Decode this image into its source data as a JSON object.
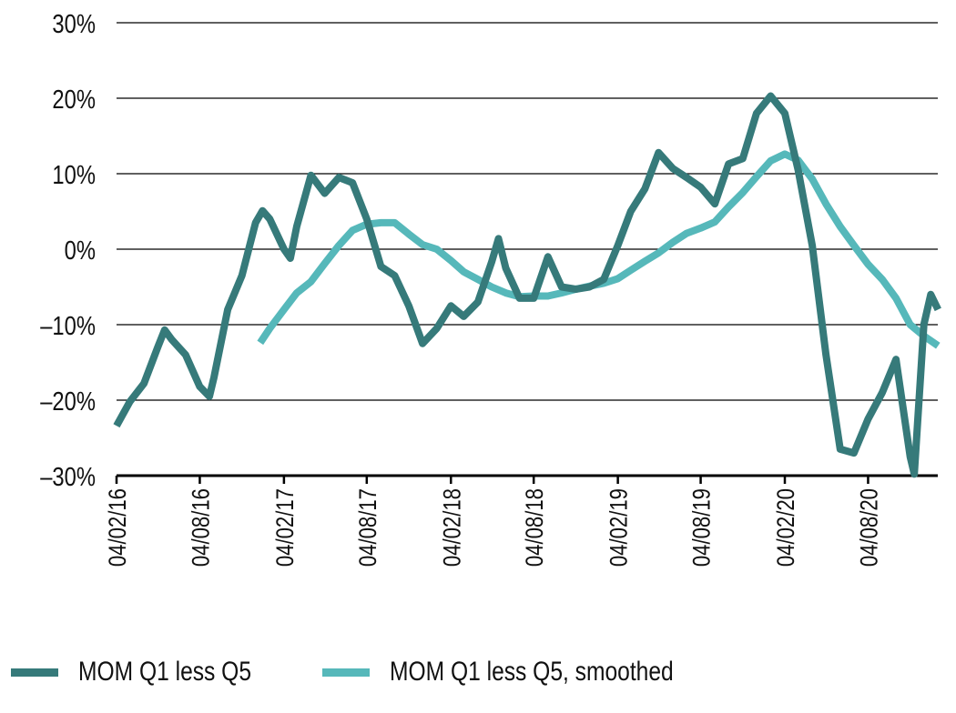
{
  "chart_data": {
    "type": "line",
    "title": "",
    "xlabel": "",
    "ylabel": "",
    "ylim": [
      -30,
      30
    ],
    "yticks": [
      30,
      20,
      10,
      0,
      -10,
      -20,
      -30
    ],
    "ytick_labels": [
      "30%",
      "20%",
      "10%",
      "0%",
      "–10%",
      "–20%",
      "–30%"
    ],
    "xtick_dates": [
      "2016-02-04",
      "2016-08-04",
      "2017-02-04",
      "2017-08-04",
      "2018-02-04",
      "2018-08-04",
      "2019-02-04",
      "2019-08-04",
      "2020-02-04",
      "2020-08-04"
    ],
    "xtick_labels": [
      "04/02/16",
      "04/08/16",
      "04/02/17",
      "04/08/17",
      "04/02/18",
      "04/08/18",
      "04/02/19",
      "04/08/19",
      "04/02/20",
      "04/08/20"
    ],
    "xlim": [
      "2016-02-04",
      "2021-01-20"
    ],
    "grid": "horizontal",
    "legend_position": "bottom",
    "series": [
      {
        "name": "MOM Q1 less Q5",
        "color": "#367A7A",
        "points": [
          [
            "2016-02-04",
            -23.4
          ],
          [
            "2016-03-04",
            -20.2
          ],
          [
            "2016-04-04",
            -17.8
          ],
          [
            "2016-05-04",
            -13
          ],
          [
            "2016-05-19",
            -10.7
          ],
          [
            "2016-06-04",
            -12
          ],
          [
            "2016-07-04",
            -14
          ],
          [
            "2016-08-04",
            -18.2
          ],
          [
            "2016-08-25",
            -19.5
          ],
          [
            "2016-09-04",
            -17
          ],
          [
            "2016-10-04",
            -8
          ],
          [
            "2016-11-04",
            -3.5
          ],
          [
            "2016-12-04",
            3.5
          ],
          [
            "2016-12-19",
            5.1
          ],
          [
            "2017-01-04",
            4
          ],
          [
            "2017-02-04",
            0
          ],
          [
            "2017-02-18",
            -1.2
          ],
          [
            "2017-03-04",
            3
          ],
          [
            "2017-04-04",
            9.8
          ],
          [
            "2017-05-04",
            7.4
          ],
          [
            "2017-06-04",
            9.5
          ],
          [
            "2017-07-04",
            8.8
          ],
          [
            "2017-08-04",
            4
          ],
          [
            "2017-09-04",
            -2.3
          ],
          [
            "2017-10-04",
            -3.5
          ],
          [
            "2017-11-04",
            -7.5
          ],
          [
            "2017-12-04",
            -12.5
          ],
          [
            "2018-01-04",
            -10.5
          ],
          [
            "2018-02-04",
            -7.5
          ],
          [
            "2018-03-04",
            -8.9
          ],
          [
            "2018-04-04",
            -7
          ],
          [
            "2018-05-04",
            -1.7
          ],
          [
            "2018-05-19",
            1.4
          ],
          [
            "2018-06-04",
            -2.5
          ],
          [
            "2018-07-04",
            -6.5
          ],
          [
            "2018-08-04",
            -6.5
          ],
          [
            "2018-09-04",
            -1
          ],
          [
            "2018-10-04",
            -5
          ],
          [
            "2018-11-04",
            -5.3
          ],
          [
            "2018-12-04",
            -5
          ],
          [
            "2019-01-04",
            -4
          ],
          [
            "2019-02-04",
            0.5
          ],
          [
            "2019-03-04",
            5
          ],
          [
            "2019-04-04",
            8
          ],
          [
            "2019-05-04",
            12.8
          ],
          [
            "2019-06-04",
            10.7
          ],
          [
            "2019-07-04",
            9.5
          ],
          [
            "2019-08-04",
            8.2
          ],
          [
            "2019-09-04",
            6
          ],
          [
            "2019-10-04",
            11.3
          ],
          [
            "2019-11-04",
            12
          ],
          [
            "2019-12-04",
            18
          ],
          [
            "2020-01-04",
            20.3
          ],
          [
            "2020-02-04",
            18
          ],
          [
            "2020-03-04",
            10.5
          ],
          [
            "2020-04-04",
            0.5
          ],
          [
            "2020-05-04",
            -14
          ],
          [
            "2020-06-04",
            -26.5
          ],
          [
            "2020-07-04",
            -27
          ],
          [
            "2020-08-04",
            -22.5
          ],
          [
            "2020-09-04",
            -19
          ],
          [
            "2020-10-04",
            -14.6
          ],
          [
            "2020-11-04",
            -27.5
          ],
          [
            "2020-11-13",
            -29.8
          ],
          [
            "2020-12-04",
            -10
          ],
          [
            "2020-12-19",
            -6
          ],
          [
            "2021-01-04",
            -8
          ]
        ]
      },
      {
        "name": "MOM Q1 less Q5, smoothed",
        "color": "#56B8BA",
        "points": [
          [
            "2016-12-14",
            -12.4
          ],
          [
            "2017-01-04",
            -10.5
          ],
          [
            "2017-02-04",
            -8
          ],
          [
            "2017-03-04",
            -5.8
          ],
          [
            "2017-04-04",
            -4.3
          ],
          [
            "2017-05-04",
            -1.9
          ],
          [
            "2017-06-04",
            0.5
          ],
          [
            "2017-07-04",
            2.5
          ],
          [
            "2017-08-04",
            3.3
          ],
          [
            "2017-09-04",
            3.5
          ],
          [
            "2017-10-04",
            3.5
          ],
          [
            "2017-11-04",
            2
          ],
          [
            "2017-12-04",
            0.6
          ],
          [
            "2018-01-04",
            0
          ],
          [
            "2018-02-04",
            -1.5
          ],
          [
            "2018-03-04",
            -3
          ],
          [
            "2018-04-04",
            -4
          ],
          [
            "2018-05-04",
            -5
          ],
          [
            "2018-06-04",
            -5.8
          ],
          [
            "2018-07-04",
            -6.3
          ],
          [
            "2018-08-04",
            -6.2
          ],
          [
            "2018-09-04",
            -6.2
          ],
          [
            "2018-10-04",
            -5.8
          ],
          [
            "2018-11-04",
            -5.3
          ],
          [
            "2018-12-04",
            -4.9
          ],
          [
            "2019-01-04",
            -4.5
          ],
          [
            "2019-02-04",
            -3.9
          ],
          [
            "2019-03-04",
            -2.8
          ],
          [
            "2019-04-04",
            -1.6
          ],
          [
            "2019-05-04",
            -0.5
          ],
          [
            "2019-06-04",
            0.9
          ],
          [
            "2019-07-04",
            2.1
          ],
          [
            "2019-08-04",
            2.8
          ],
          [
            "2019-09-04",
            3.6
          ],
          [
            "2019-10-04",
            5.6
          ],
          [
            "2019-11-04",
            7.5
          ],
          [
            "2019-12-04",
            9.6
          ],
          [
            "2020-01-04",
            11.7
          ],
          [
            "2020-02-04",
            12.6
          ],
          [
            "2020-03-04",
            11.8
          ],
          [
            "2020-04-04",
            9.3
          ],
          [
            "2020-05-04",
            6
          ],
          [
            "2020-06-04",
            3
          ],
          [
            "2020-07-04",
            0.5
          ],
          [
            "2020-08-04",
            -2
          ],
          [
            "2020-09-04",
            -4
          ],
          [
            "2020-10-04",
            -6.5
          ],
          [
            "2020-11-04",
            -10
          ],
          [
            "2020-12-04",
            -11.5
          ],
          [
            "2021-01-04",
            -12.8
          ]
        ]
      }
    ]
  }
}
